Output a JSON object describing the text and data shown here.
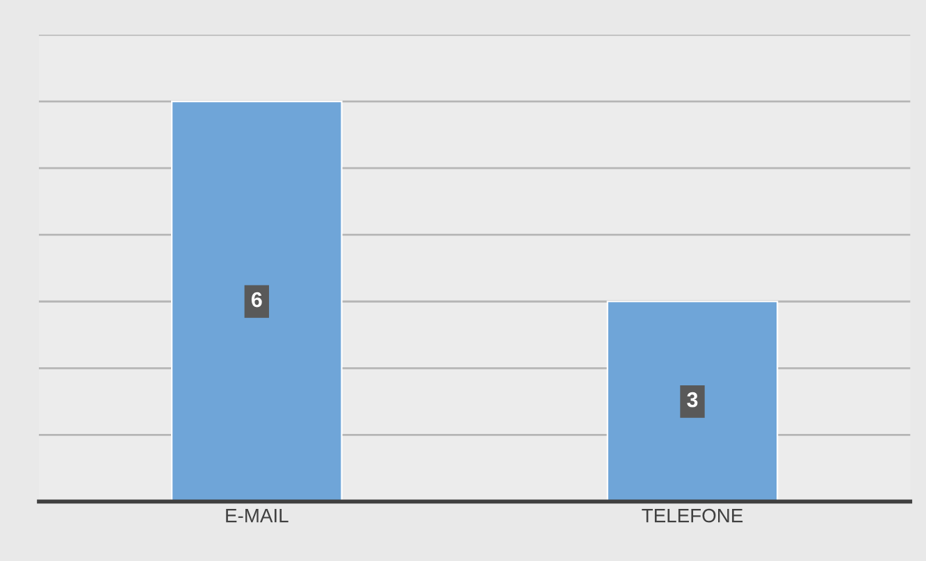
{
  "chart_data": {
    "type": "bar",
    "categories": [
      "E-MAIL",
      "TELEFONE"
    ],
    "values": [
      6,
      3
    ],
    "color": "#6fa5d8",
    "ylim": [
      0,
      7
    ],
    "yticks": [
      {
        "value": 0,
        "label": null
      },
      {
        "value": 1,
        "label": null
      },
      {
        "value": 2,
        "label": null
      },
      {
        "value": 3,
        "label": null
      },
      {
        "value": 4,
        "label": null
      },
      {
        "value": 5,
        "label": null
      },
      {
        "value": 6,
        "label": null
      },
      {
        "value": 7,
        "label": null
      }
    ],
    "grid": "y",
    "tick_labels": "x",
    "data_labels": true
  }
}
